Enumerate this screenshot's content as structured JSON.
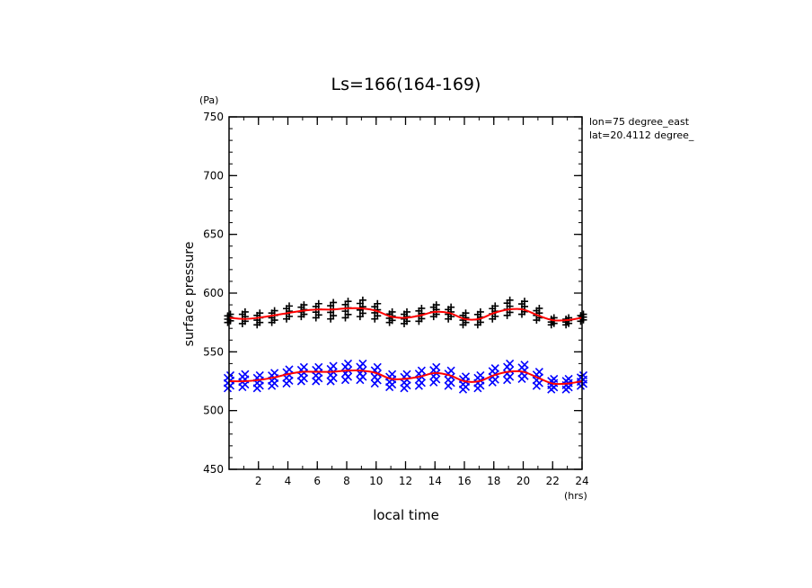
{
  "chart_data": {
    "type": "scatter",
    "title": "Ls=166(164-169)",
    "xlabel": "local time",
    "ylabel": "surface pressure",
    "x_unit": "(hrs)",
    "y_unit": "(Pa)",
    "xlim": [
      0,
      24
    ],
    "ylim": [
      450,
      750
    ],
    "x_ticks": [
      2,
      4,
      6,
      8,
      10,
      12,
      14,
      16,
      18,
      20,
      22,
      24
    ],
    "y_ticks": [
      450,
      500,
      550,
      600,
      650,
      700,
      750
    ],
    "annotations": [
      "lon=75 degree_east",
      "lat=20.4112 degree_"
    ],
    "grid": false,
    "colors": {
      "upper_markers": "#000000",
      "lower_markers": "#0000ff",
      "fit_line": "#ff0000"
    },
    "series": [
      {
        "marker": "plus",
        "x": [
          0,
          1,
          2,
          3,
          4,
          5,
          6,
          7,
          8,
          9,
          10,
          11,
          12,
          13,
          14,
          15,
          16,
          17,
          18,
          19,
          20,
          21,
          22,
          23,
          24
        ],
        "lo": [
          575,
          574,
          573,
          575,
          578,
          580,
          579,
          578,
          579,
          580,
          578,
          575,
          574,
          576,
          580,
          578,
          573,
          573,
          578,
          581,
          582,
          577,
          573,
          573,
          576
        ],
        "hi": [
          582,
          584,
          583,
          585,
          589,
          590,
          591,
          592,
          593,
          594,
          591,
          584,
          584,
          587,
          590,
          588,
          583,
          584,
          589,
          594,
          593,
          587,
          579,
          579,
          582
        ]
      },
      {
        "marker": "x",
        "x": [
          0,
          1,
          2,
          3,
          4,
          5,
          6,
          7,
          8,
          9,
          10,
          11,
          12,
          13,
          14,
          15,
          16,
          17,
          18,
          19,
          20,
          21,
          22,
          23,
          24
        ],
        "lo": [
          519,
          520,
          519,
          521,
          523,
          525,
          525,
          525,
          526,
          526,
          523,
          520,
          519,
          521,
          524,
          521,
          518,
          519,
          524,
          526,
          527,
          521,
          518,
          518,
          521
        ],
        "hi": [
          530,
          531,
          530,
          532,
          535,
          537,
          537,
          538,
          540,
          540,
          537,
          531,
          531,
          534,
          537,
          534,
          529,
          530,
          536,
          540,
          539,
          533,
          527,
          527,
          530
        ]
      }
    ],
    "fit_lines": [
      {
        "x": [
          0,
          1,
          2,
          3,
          4,
          5,
          6,
          7,
          8,
          9,
          10,
          11,
          12,
          13,
          14,
          15,
          16,
          17,
          18,
          19,
          20,
          21,
          22,
          23,
          24
        ],
        "y": [
          579,
          578,
          579,
          581,
          583,
          585,
          586,
          586,
          587,
          587,
          585,
          580,
          579,
          581,
          584,
          583,
          578,
          578,
          583,
          586,
          586,
          581,
          577,
          577,
          579
        ]
      },
      {
        "x": [
          0,
          1,
          2,
          3,
          4,
          5,
          6,
          7,
          8,
          9,
          10,
          11,
          12,
          13,
          14,
          15,
          16,
          17,
          18,
          19,
          20,
          21,
          22,
          23,
          24
        ],
        "y": [
          525,
          525,
          526,
          528,
          531,
          533,
          533,
          533,
          534,
          534,
          532,
          527,
          527,
          529,
          532,
          530,
          525,
          525,
          530,
          533,
          533,
          528,
          523,
          523,
          525
        ]
      }
    ]
  }
}
